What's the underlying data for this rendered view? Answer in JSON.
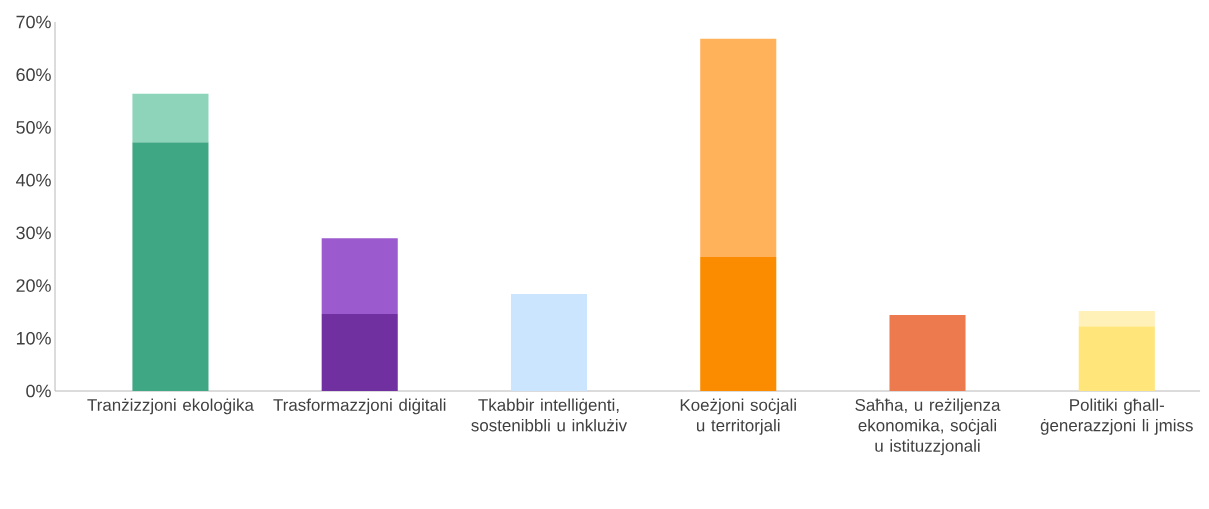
{
  "chart_data": {
    "type": "bar",
    "stacked": true,
    "categories": [
      "Tranżizzjoni ekoloġika",
      "Trasformazzjoni diġitali",
      "Tkabbir intelliġenti, sostenibbli u inklużiv",
      "Koeżjoni soċjali u territorjali",
      "Saħħa, u reżiljenza ekonomika, soċjali u istituzzjonali",
      "Politiki għall-ġenerazzjoni li jmiss"
    ],
    "series": [
      {
        "colors": [
          "#3fa783",
          "#7030a0",
          "#cce5ff",
          "#fb8c00",
          "#ec7a4e",
          "#ffe57a"
        ],
        "values": [
          47.2,
          14.6,
          18.4,
          25.4,
          14.4,
          12.3
        ]
      },
      {
        "colors": [
          "#8dd4bb",
          "#9b5bcf",
          "#cce5ff",
          "#ffb25a",
          "#ec7a4e",
          "#fff1b8"
        ],
        "values": [
          9.2,
          14.4,
          null,
          41.4,
          null,
          2.9
        ]
      }
    ],
    "ylim": [
      0,
      70
    ],
    "yticks": [
      {
        "value": 0,
        "label": "0%"
      },
      {
        "value": 10,
        "label": "10%"
      },
      {
        "value": 20,
        "label": "20%"
      },
      {
        "value": 30,
        "label": "30%"
      },
      {
        "value": 40,
        "label": "40%"
      },
      {
        "value": 50,
        "label": "50%"
      },
      {
        "value": 60,
        "label": "60%"
      },
      {
        "value": 70,
        "label": "70%"
      }
    ]
  }
}
